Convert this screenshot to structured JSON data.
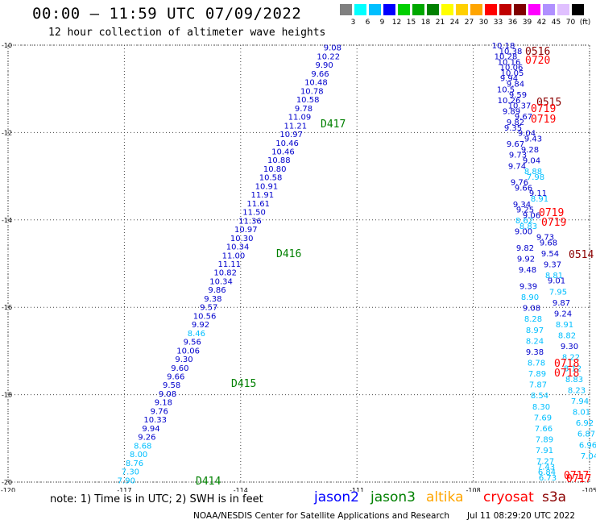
{
  "title": "00:00 – 11:59 UTC 07/09/2022",
  "subtitle": "12 hour collection of altimeter wave heights",
  "colorbar": {
    "swatches": [
      "#808080",
      "#00ffff",
      "#00bfff",
      "#0000ff",
      "#00d000",
      "#00a800",
      "#008000",
      "#ffff00",
      "#ffd000",
      "#ffa500",
      "#ff0000",
      "#c00000",
      "#800000",
      "#ff00ff",
      "#b090ff",
      "#e0c0ff",
      "#000000"
    ],
    "labels": [
      "3",
      "6",
      "9",
      "12",
      "15",
      "18",
      "21",
      "24",
      "27",
      "30",
      "33",
      "36",
      "39",
      "42",
      "45",
      "70",
      "(ft)"
    ]
  },
  "axes": {
    "lon_ticks": [
      "-120",
      "-117",
      "-114",
      "-111",
      "-108",
      "-105"
    ],
    "lat_ticks": [
      "-10",
      "-12",
      "-14",
      "-16",
      "-18",
      "-20"
    ]
  },
  "colors": {
    "jason2": "#0000ff",
    "jason3": "#008000",
    "altika": "#ffa500",
    "cryosat": "#ff0000",
    "s3a": "#8b0000",
    "light": "#00bfff",
    "blue": "#0000cc"
  },
  "track_west": {
    "start_lon": -111.63,
    "start_lat": -10.05,
    "end_lon": -116.95,
    "end_lat": -19.95,
    "values": [
      "9.08",
      "10.22",
      "9.90",
      "9.66",
      "10.48",
      "10.78",
      "10.58",
      "9.78",
      "11.09",
      "11.21",
      "10.97",
      "10.46",
      "10.46",
      "10.88",
      "10.80",
      "10.58",
      "10.91",
      "11.91",
      "11.61",
      "11.50",
      "11.36",
      "10.97",
      "10.30",
      "10.34",
      "11.00",
      "11.11",
      "10.82",
      "10.34",
      "9.86",
      "9.38",
      "9.57",
      "10.56",
      "9.92",
      "8.46",
      "9.56",
      "10.06",
      "9.30",
      "9.60",
      "9.66",
      "9.58",
      "9.08",
      "9.18",
      "9.76",
      "10.33",
      "9.94",
      "9.26",
      "8.68",
      "8.00",
      "8.76",
      "7.30",
      "7.90"
    ],
    "light_idx": [
      33,
      46,
      47,
      48,
      49,
      50
    ]
  },
  "track_east": {
    "values": [
      "10.18",
      "10.38",
      "10.28",
      "10.16",
      "10.06",
      "10.05",
      "9.94",
      "9.84",
      "10.5",
      "9.59",
      "10.26",
      "10.37",
      "9.89",
      "9.67",
      "9.82",
      "9.35",
      "9.04",
      "9.43",
      "9.67",
      "9.28",
      "9.73",
      "9.04",
      "9.74",
      "8.88",
      "7.98",
      "9.76",
      "9.66",
      "9.11",
      "8.91",
      "9.34",
      "9.25",
      "9.06",
      "8.62",
      "8.83",
      "9.00",
      "9.73",
      "9.68",
      "9.82",
      "9.54",
      "9.92",
      "9.37",
      "9.48",
      "8.81",
      "9.01",
      "9.39",
      "7.95",
      "8.90",
      "9.87",
      "9.08",
      "9.24",
      "8.28",
      "8.91",
      "8.97",
      "8.82",
      "8.24",
      "9.30",
      "9.38",
      "8.22",
      "8.78",
      "8.12",
      "7.89",
      "8.83",
      "7.87",
      "8.23",
      "8.54",
      "7.94",
      "8.30",
      "8.01",
      "7.69",
      "6.92",
      "7.66",
      "6.87",
      "7.89",
      "6.96",
      "7.91",
      "7.04",
      "7.27",
      "7.43",
      "6.84",
      "6.73"
    ]
  },
  "pass_labels": [
    {
      "text": "D417",
      "color": "#008000"
    },
    {
      "text": "D416",
      "color": "#008000"
    },
    {
      "text": "D415",
      "color": "#008000"
    },
    {
      "text": "D414",
      "color": "#008000"
    },
    {
      "text": "0516",
      "color": "#8b0000"
    },
    {
      "text": "0720",
      "color": "#ff0000"
    },
    {
      "text": "0515",
      "color": "#8b0000"
    },
    {
      "text": "0719",
      "color": "#ff0000"
    },
    {
      "text": "0719",
      "color": "#ff0000"
    },
    {
      "text": "0719",
      "color": "#ff0000"
    },
    {
      "text": "0719",
      "color": "#ff0000"
    },
    {
      "text": "0514",
      "color": "#8b0000"
    },
    {
      "text": "0718",
      "color": "#ff0000"
    },
    {
      "text": "0718",
      "color": "#ff0000"
    },
    {
      "text": "0717",
      "color": "#ff0000"
    },
    {
      "text": "0717",
      "color": "#ff0000"
    }
  ],
  "note": "note: 1) Time is in UTC; 2) SWH is in feet",
  "legend": {
    "jason2": "jason2",
    "jason3": "jason3",
    "altika": "altika",
    "cryosat": "cryosat",
    "s3a": "s3a"
  },
  "footer": "NOAA/NESDIS Center for Satellite Applications and Research",
  "footer_timestamp": "Jul 11 08:29:20 UTC 2022"
}
